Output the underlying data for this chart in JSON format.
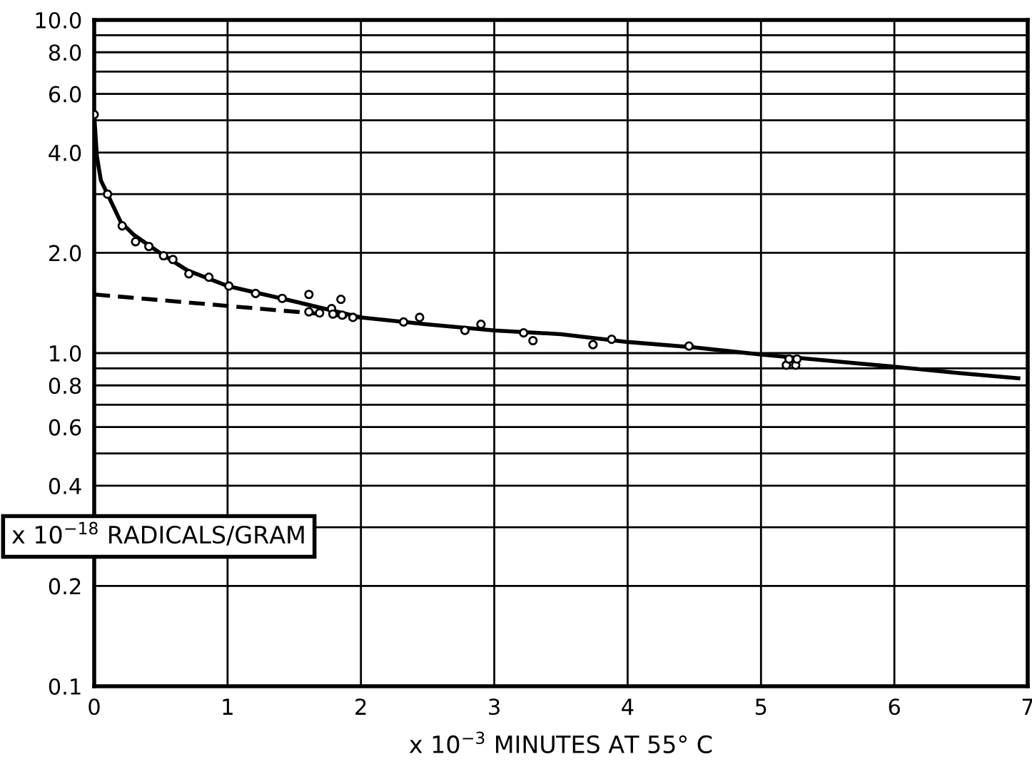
{
  "chart_data": {
    "type": "scatter",
    "xlabel": "x 10$^{−3}$ MINUTES AT 55° C",
    "ylabel": "x 10$^{−18}$ RADICALS/GRAM",
    "series": [
      {
        "color": "#000000",
        "marker": "circle",
        "x": [
          0,
          0.1,
          0.21,
          0.31,
          0.41,
          0.52,
          0.59,
          0.71,
          0.86,
          1.01,
          1.21,
          1.41,
          1.61,
          1.85,
          1.61,
          1.69,
          1.78,
          1.79,
          1.86,
          1.94,
          2.32,
          2.44,
          2.78,
          2.9,
          3.22,
          3.29,
          3.74,
          3.88,
          4.46,
          5.19,
          5.26,
          5.21,
          5.27
        ],
        "values": [
          5.2,
          3.0,
          2.41,
          2.16,
          2.09,
          1.96,
          1.91,
          1.73,
          1.69,
          1.59,
          1.51,
          1.46,
          1.5,
          1.45,
          1.33,
          1.32,
          1.36,
          1.31,
          1.3,
          1.28,
          1.24,
          1.28,
          1.17,
          1.22,
          1.15,
          1.09,
          1.06,
          1.1,
          1.05,
          0.92,
          0.92,
          0.96,
          0.96
        ]
      },
      {
        "type": "line",
        "color": "#000000",
        "line_style": "solid",
        "x": [
          0,
          0.02,
          0.05,
          0.1,
          0.2,
          0.3,
          0.5,
          0.7,
          1.0,
          1.5,
          2.0,
          2.5,
          3.0,
          3.5,
          4.0,
          4.5,
          5.0,
          5.5,
          6.0,
          6.5,
          6.93
        ],
        "values": [
          5.2,
          3.9,
          3.3,
          3.0,
          2.47,
          2.26,
          1.99,
          1.77,
          1.59,
          1.43,
          1.28,
          1.22,
          1.17,
          1.14,
          1.08,
          1.04,
          0.99,
          0.95,
          0.91,
          0.87,
          0.84
        ]
      },
      {
        "type": "line",
        "color": "#000000",
        "line_style": "dashed",
        "x": [
          0,
          2.0
        ],
        "values": [
          1.5,
          1.28
        ]
      }
    ],
    "log": "y",
    "xlim": [
      0,
      7
    ],
    "xticks": [
      0,
      1,
      2,
      3,
      4,
      5,
      6,
      7
    ],
    "ylim": [
      0.1,
      10
    ],
    "yticks": [
      {
        "value": 0.1,
        "label": "0.1"
      },
      {
        "value": 0.2,
        "label": "0.2"
      },
      {
        "value": 0.3,
        "label": null
      },
      {
        "value": 0.4,
        "label": "0.4"
      },
      {
        "value": 0.5,
        "label": null
      },
      {
        "value": 0.6,
        "label": "0.6"
      },
      {
        "value": 0.7,
        "label": null
      },
      {
        "value": 0.8,
        "label": "0.8"
      },
      {
        "value": 0.9,
        "label": null
      },
      {
        "value": 1,
        "label": "1.0"
      },
      {
        "value": 2,
        "label": "2.0"
      },
      {
        "value": 3,
        "label": null
      },
      {
        "value": 4,
        "label": "4.0"
      },
      {
        "value": 5,
        "label": null
      },
      {
        "value": 6,
        "label": "6.0"
      },
      {
        "value": 7,
        "label": null
      },
      {
        "value": 8,
        "label": "8.0"
      },
      {
        "value": 9,
        "label": null
      },
      {
        "value": 10,
        "label": "10.0"
      }
    ],
    "grid": true
  }
}
